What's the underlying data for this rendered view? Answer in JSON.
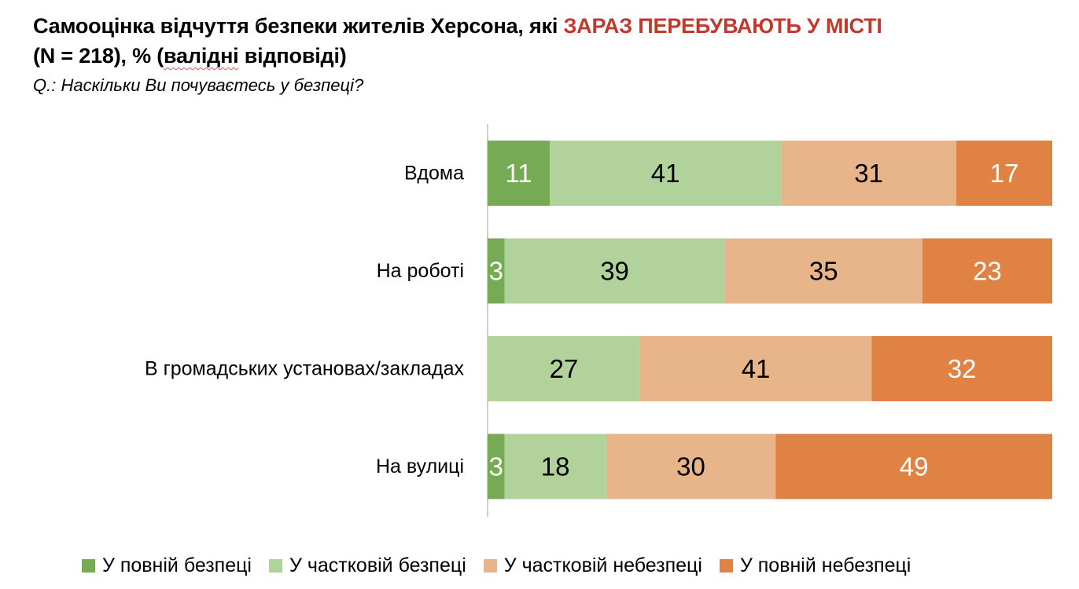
{
  "title": {
    "part1": "Самооцінка відчуття безпеки жителів Херсона, які ",
    "highlight": "ЗАРАЗ ПЕРЕБУВАЮТЬ У МІСТІ",
    "part2": "(N = 218), % (",
    "underlined": "валідні",
    "part3": " відповіді)"
  },
  "subtitle": "Q.: Наскільки Ви почуваєтесь у безпеці?",
  "colors": {
    "full_safe": "#77aa55",
    "partial_safe": "#b1d29a",
    "partial_unsafe": "#e8b48a",
    "full_unsafe": "#df8244",
    "highlight": "#c0392b"
  },
  "chart_data": {
    "type": "bar",
    "orientation": "horizontal",
    "stacked": true,
    "categories": [
      "Вдома",
      "На роботі",
      "В громадських установах/закладах",
      "На вулиці"
    ],
    "series": [
      {
        "name": "У повній безпеці",
        "values": [
          11,
          3,
          0,
          3
        ],
        "color": "#77aa55",
        "label_color": "#ffffff"
      },
      {
        "name": "У частковій безпеці",
        "values": [
          41,
          39,
          27,
          18
        ],
        "color": "#b1d29a",
        "label_color": "#000000"
      },
      {
        "name": "У частковій небезпеці",
        "values": [
          31,
          35,
          41,
          30
        ],
        "color": "#e8b48a",
        "label_color": "#000000"
      },
      {
        "name": "У повній небезпеці",
        "values": [
          17,
          23,
          32,
          49
        ],
        "color": "#df8244",
        "label_color": "#ffffff"
      }
    ],
    "xlim": [
      0,
      100
    ],
    "legend_position": "bottom",
    "grid": false
  }
}
